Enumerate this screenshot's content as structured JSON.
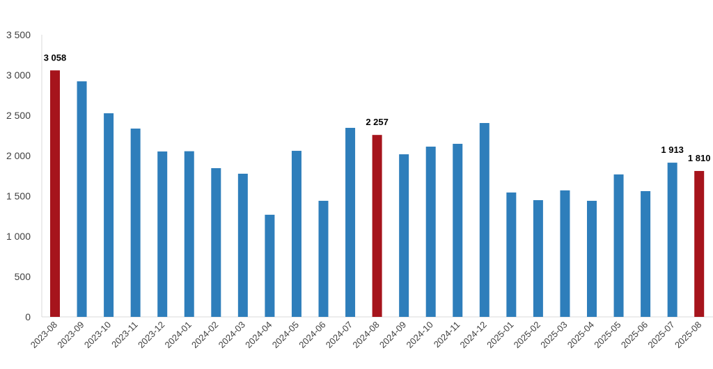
{
  "chart_data": {
    "type": "bar",
    "title": "",
    "xlabel": "",
    "ylabel": "",
    "ylim": [
      0,
      3500
    ],
    "yticks": [
      0,
      500,
      1000,
      1500,
      2000,
      2500,
      3000,
      3500
    ],
    "ytick_labels": [
      "0",
      "500",
      "1 000",
      "1 500",
      "2 000",
      "2 500",
      "3 000",
      "3 500"
    ],
    "grid": false,
    "categories": [
      "2023-08",
      "2023-09",
      "2023-10",
      "2023-11",
      "2023-12",
      "2024-01",
      "2024-02",
      "2024-03",
      "2024-04",
      "2024-05",
      "2024-06",
      "2024-07",
      "2024-08",
      "2024-09",
      "2024-10",
      "2024-11",
      "2024-12",
      "2025-01",
      "2025-02",
      "2025-03",
      "2025-04",
      "2025-05",
      "2025-06",
      "2025-07",
      "2025-08"
    ],
    "values": [
      3058,
      2922,
      2526,
      2336,
      2052,
      2055,
      1845,
      1776,
      1267,
      2060,
      1440,
      2345,
      2257,
      2017,
      2112,
      2147,
      2405,
      1543,
      1448,
      1569,
      1440,
      1767,
      1560,
      1913,
      1810
    ],
    "highlighted": [
      "2023-08",
      "2024-08",
      "2025-08"
    ],
    "data_labels": [
      {
        "category": "2023-08",
        "text": "3 058"
      },
      {
        "category": "2024-08",
        "text": "2 257"
      },
      {
        "category": "2025-07",
        "text": "1 913"
      },
      {
        "category": "2025-08",
        "text": "1 810"
      }
    ],
    "colors": {
      "bar": "#2E7EBB",
      "highlight": "#A6141C",
      "axis": "#D9D9D9",
      "text": "#404040"
    }
  }
}
